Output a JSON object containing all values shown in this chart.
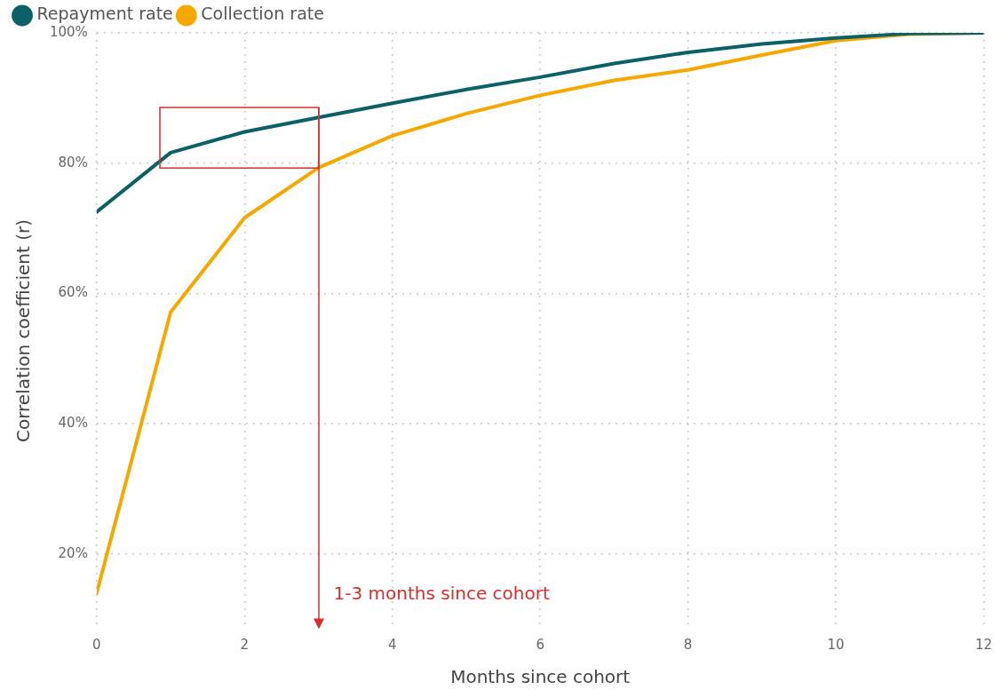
{
  "chart_data": {
    "type": "line",
    "xlabel": "Months since cohort",
    "ylabel": "Correlation coefficient (r)",
    "x": [
      0,
      1,
      2,
      3,
      4,
      5,
      6,
      7,
      8,
      9,
      10,
      11,
      12
    ],
    "series": [
      {
        "name": "Repayment rate",
        "color": "#0b6166",
        "values": [
          72.5,
          81.6,
          84.8,
          87,
          89.2,
          91.3,
          93.2,
          95.3,
          97,
          98.3,
          99.2,
          99.9,
          100
        ]
      },
      {
        "name": "Collection rate",
        "color": "#f5a800",
        "values": [
          14,
          57.1,
          71.6,
          79.3,
          84.2,
          87.6,
          90.4,
          92.7,
          94.3,
          96.6,
          98.8,
          99.8,
          100
        ]
      }
    ],
    "xlim": [
      0,
      12
    ],
    "xticks": [
      0,
      2,
      4,
      6,
      8,
      10,
      12
    ],
    "ylim": [
      8.5,
      100
    ],
    "yticks": [
      {
        "value": 20,
        "label": "20%"
      },
      {
        "value": 40,
        "label": "40%"
      },
      {
        "value": 60,
        "label": "60%"
      },
      {
        "value": 80,
        "label": "80%"
      },
      {
        "value": 100,
        "label": "100%"
      }
    ],
    "ref_lines": [
      {
        "axis": "x",
        "value": 3,
        "label": "1-3 months since cohort",
        "color": "#d62f2f"
      }
    ],
    "grid": true,
    "legend": "top left",
    "marker": "none",
    "line_style": "solid"
  }
}
